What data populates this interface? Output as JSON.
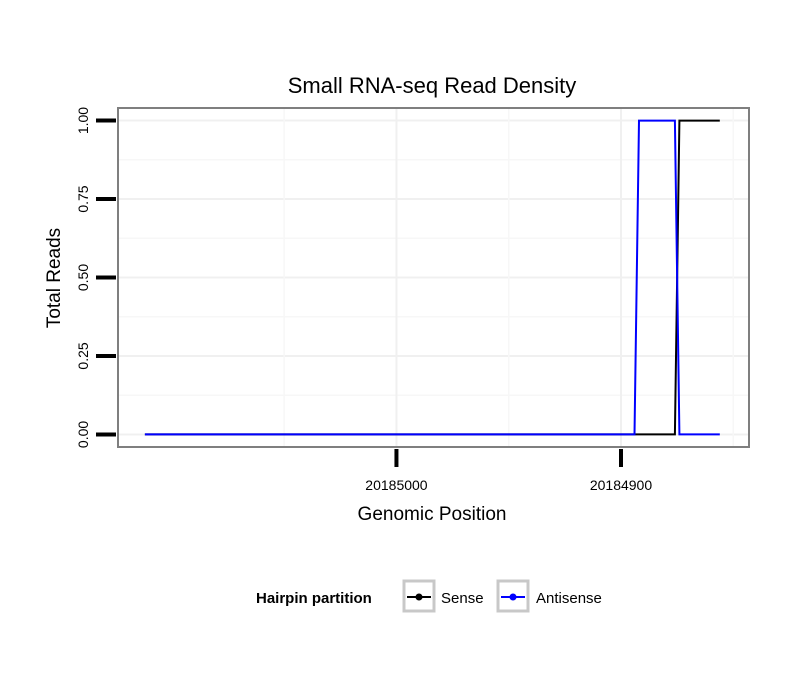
{
  "chart_data": {
    "type": "line",
    "title": "Small RNA-seq Read Density",
    "xlabel": "Genomic Position",
    "ylabel": "Total Reads",
    "x_reversed": true,
    "xlim": [
      20185124,
      20184843
    ],
    "ylim": [
      -0.04,
      1.04
    ],
    "x_ticks": [
      20185000,
      20184900
    ],
    "x_tick_labels": [
      "20185000",
      "20184900"
    ],
    "y_ticks": [
      0,
      0.25,
      0.5,
      0.75,
      1
    ],
    "y_tick_labels": [
      "0.00",
      "0.25",
      "0.50",
      "0.75",
      "1.00"
    ],
    "legend": {
      "title": "Hairpin partition",
      "position": "bottom"
    },
    "series": [
      {
        "name": "Sense",
        "color": "#000000",
        "x": [
          20185112,
          20184894,
          20184876,
          20184874,
          20184856
        ],
        "y": [
          0,
          0,
          0,
          1,
          1
        ]
      },
      {
        "name": "Antisense",
        "color": "#0000ff",
        "x": [
          20185112,
          20184894,
          20184892,
          20184876,
          20184874,
          20184856
        ],
        "y": [
          0,
          0,
          1,
          1,
          0,
          0
        ]
      }
    ]
  }
}
